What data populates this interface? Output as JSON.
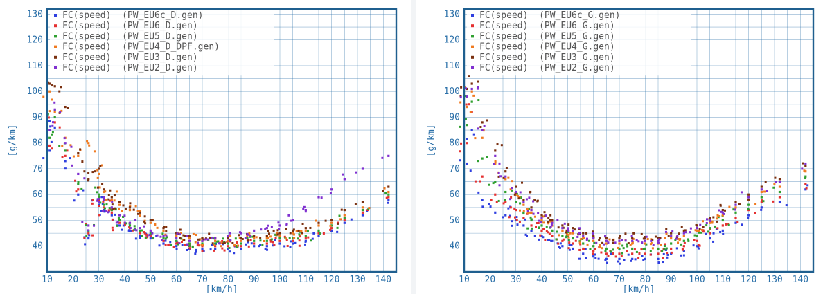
{
  "chart_data": [
    {
      "type": "scatter",
      "xlabel": "[km/h]",
      "ylabel": "[g/km]",
      "xlim": [
        10,
        145
      ],
      "ylim": [
        30,
        132
      ],
      "xticks": [
        10,
        20,
        30,
        40,
        50,
        60,
        70,
        80,
        90,
        100,
        110,
        120,
        130,
        140
      ],
      "yticks": [
        40,
        50,
        60,
        70,
        80,
        90,
        100,
        110,
        120,
        130
      ],
      "grid": true,
      "legend_position": "top-left",
      "series": [
        {
          "name": "FC(speed)  (PW_EU6c_D.gen)",
          "color": "#2f3fe0",
          "x": [
            11,
            13,
            17,
            22,
            26,
            30,
            32,
            35,
            38,
            42,
            46,
            50,
            55,
            60,
            65,
            70,
            75,
            80,
            85,
            90,
            95,
            100,
            105,
            110,
            115,
            120,
            125,
            132,
            142
          ],
          "y": [
            77,
            86,
            73,
            60,
            43,
            56,
            54,
            52,
            48,
            46,
            44,
            43,
            41,
            40,
            39,
            39,
            39,
            39,
            39,
            40,
            40,
            41,
            41,
            42,
            44,
            46,
            49,
            52,
            58
          ]
        },
        {
          "name": "FC(speed)  (PW_EU6_D.gen)",
          "color": "#e53030",
          "x": [
            11,
            13,
            17,
            22,
            26,
            30,
            32,
            35,
            38,
            42,
            46,
            50,
            55,
            60,
            65,
            70,
            75,
            80,
            85,
            90,
            95,
            100,
            105,
            110,
            115,
            120,
            125,
            132,
            142
          ],
          "y": [
            79,
            88,
            75,
            62,
            45,
            58,
            55,
            53,
            49,
            47,
            45,
            44,
            42,
            41,
            40,
            40,
            40,
            40,
            40,
            41,
            41,
            42,
            42,
            43,
            45,
            47,
            50,
            53,
            59
          ]
        },
        {
          "name": "FC(speed)  (PW_EU5_D.gen)",
          "color": "#2fa030",
          "x": [
            11,
            13,
            17,
            22,
            26,
            30,
            32,
            35,
            38,
            42,
            46,
            50,
            55,
            60,
            65,
            70,
            75,
            80,
            85,
            90,
            95,
            100,
            105,
            110,
            115,
            120,
            125,
            132,
            142
          ],
          "y": [
            82,
            90,
            77,
            64,
            46,
            60,
            56,
            54,
            50,
            48,
            46,
            45,
            43,
            42,
            41,
            41,
            41,
            41,
            41,
            42,
            42,
            43,
            43,
            44,
            46,
            48,
            51,
            54,
            60
          ]
        },
        {
          "name": "FC(speed)  (PW_EU4_D_DPF.gen)",
          "color": "#f07a20",
          "x": [
            11,
            13,
            17,
            22,
            26,
            30,
            32,
            35,
            38,
            42,
            46,
            50,
            55,
            60,
            65,
            70,
            75,
            80,
            85,
            90,
            95,
            100,
            105,
            110,
            115,
            120,
            125,
            132,
            142
          ],
          "y": [
            100,
            92,
            82,
            75,
            80,
            68,
            61,
            58,
            56,
            54,
            52,
            49,
            46,
            44,
            43,
            42,
            42,
            42,
            42,
            43,
            43,
            44,
            45,
            46,
            48,
            49,
            52,
            55,
            61
          ]
        },
        {
          "name": "FC(speed)  (PW_EU3_D.gen)",
          "color": "#7a3010",
          "x": [
            11,
            13,
            17,
            22,
            26,
            30,
            32,
            35,
            38,
            42,
            46,
            50,
            55,
            60,
            65,
            70,
            75,
            80,
            85,
            90,
            95,
            100,
            105,
            110,
            115,
            120,
            125,
            132,
            142
          ],
          "y": [
            103,
            102,
            94,
            76,
            66,
            70,
            62,
            59,
            57,
            55,
            53,
            50,
            47,
            45,
            44,
            43,
            43,
            43,
            43,
            44,
            44,
            45,
            46,
            47,
            49,
            50,
            54,
            57,
            63
          ]
        },
        {
          "name": "FC(speed)  (PW_EU2_D.gen)",
          "color": "#8030d0",
          "x": [
            11,
            13,
            17,
            22,
            26,
            30,
            32,
            35,
            38,
            42,
            46,
            50,
            55,
            60,
            65,
            70,
            75,
            80,
            85,
            90,
            95,
            100,
            105,
            110,
            115,
            120,
            125,
            132,
            142
          ],
          "y": [
            85,
            93,
            80,
            68,
            48,
            57,
            58,
            55,
            52,
            49,
            47,
            46,
            44,
            43,
            42,
            42,
            43,
            44,
            45,
            46,
            47,
            48,
            50,
            54,
            59,
            62,
            66,
            70,
            75
          ]
        }
      ]
    },
    {
      "type": "scatter",
      "xlabel": "[km/h]",
      "ylabel": "[g/km]",
      "xlim": [
        10,
        145
      ],
      "ylim": [
        30,
        132
      ],
      "xticks": [
        10,
        20,
        30,
        40,
        50,
        60,
        70,
        80,
        90,
        100,
        110,
        120,
        130,
        140
      ],
      "yticks": [
        40,
        50,
        60,
        70,
        80,
        90,
        100,
        110,
        120,
        130
      ],
      "grid": true,
      "legend_position": "top-left",
      "series": [
        {
          "name": "FC(speed)  (PW_EU6c_G.gen)",
          "color": "#2f3fe0",
          "x": [
            11,
            13,
            17,
            22,
            26,
            30,
            33,
            36,
            40,
            44,
            48,
            52,
            56,
            60,
            65,
            70,
            75,
            80,
            85,
            90,
            95,
            100,
            105,
            110,
            115,
            120,
            125,
            132,
            142
          ],
          "y": [
            72,
            85,
            58,
            53,
            52,
            50,
            48,
            46,
            44,
            42,
            40,
            39,
            37,
            36,
            35,
            35,
            35,
            35,
            35,
            37,
            38,
            40,
            43,
            46,
            49,
            52,
            55,
            57,
            62
          ]
        },
        {
          "name": "FC(speed)  (PW_EU6_G.gen)",
          "color": "#e53030",
          "x": [
            11,
            13,
            17,
            22,
            26,
            30,
            33,
            36,
            40,
            44,
            48,
            52,
            56,
            60,
            65,
            70,
            75,
            80,
            85,
            90,
            95,
            100,
            105,
            110,
            115,
            120,
            125,
            132,
            142
          ],
          "y": [
            80,
            92,
            67,
            60,
            57,
            54,
            51,
            48,
            46,
            44,
            42,
            41,
            39,
            38,
            37,
            37,
            37,
            37,
            37,
            39,
            40,
            42,
            45,
            48,
            51,
            54,
            57,
            59,
            64
          ]
        },
        {
          "name": "FC(speed)  (PW_EU5_G.gen)",
          "color": "#2fa030",
          "x": [
            11,
            13,
            17,
            22,
            26,
            30,
            33,
            36,
            40,
            44,
            48,
            52,
            56,
            60,
            65,
            70,
            75,
            80,
            85,
            90,
            95,
            100,
            105,
            110,
            115,
            120,
            125,
            132,
            142
          ],
          "y": [
            87,
            96,
            74,
            65,
            61,
            57,
            53,
            50,
            48,
            46,
            44,
            43,
            41,
            40,
            39,
            39,
            39,
            39,
            39,
            41,
            42,
            44,
            47,
            50,
            53,
            56,
            59,
            61,
            67
          ]
        },
        {
          "name": "FC(speed)  (PW_EU4_G.gen)",
          "color": "#f07a20",
          "x": [
            11,
            13,
            17,
            22,
            26,
            30,
            33,
            36,
            40,
            44,
            48,
            52,
            56,
            60,
            65,
            70,
            75,
            80,
            85,
            90,
            95,
            100,
            105,
            110,
            115,
            120,
            125,
            132,
            142
          ],
          "y": [
            94,
            100,
            82,
            72,
            66,
            60,
            56,
            53,
            50,
            48,
            46,
            45,
            43,
            42,
            41,
            41,
            41,
            41,
            41,
            43,
            44,
            46,
            49,
            52,
            55,
            58,
            61,
            63,
            69
          ]
        },
        {
          "name": "FC(speed)  (PW_EU3_G.gen)",
          "color": "#7a3010",
          "x": [
            11,
            13,
            17,
            22,
            26,
            30,
            33,
            36,
            40,
            44,
            48,
            52,
            56,
            60,
            65,
            70,
            75,
            80,
            85,
            90,
            95,
            100,
            105,
            110,
            115,
            120,
            125,
            132,
            142
          ],
          "y": [
            101,
            103,
            88,
            77,
            69,
            63,
            58,
            55,
            52,
            50,
            48,
            47,
            45,
            44,
            43,
            43,
            43,
            43,
            43,
            45,
            46,
            48,
            51,
            54,
            57,
            60,
            63,
            66,
            71
          ]
        },
        {
          "name": "FC(speed)  (PW_EU2_G.gen)",
          "color": "#8030d0",
          "x": [
            11,
            13,
            17,
            22,
            26,
            30,
            33,
            36,
            40,
            44,
            48,
            52,
            56,
            60,
            65,
            70,
            75,
            80,
            85,
            90,
            95,
            100,
            105,
            110,
            115,
            120,
            125,
            132,
            142
          ],
          "y": [
            98,
            101,
            85,
            75,
            67,
            61,
            57,
            54,
            51,
            49,
            47,
            46,
            44,
            43,
            42,
            42,
            42,
            42,
            42,
            44,
            45,
            47,
            50,
            53,
            56,
            59,
            62,
            65,
            72
          ]
        }
      ]
    }
  ]
}
